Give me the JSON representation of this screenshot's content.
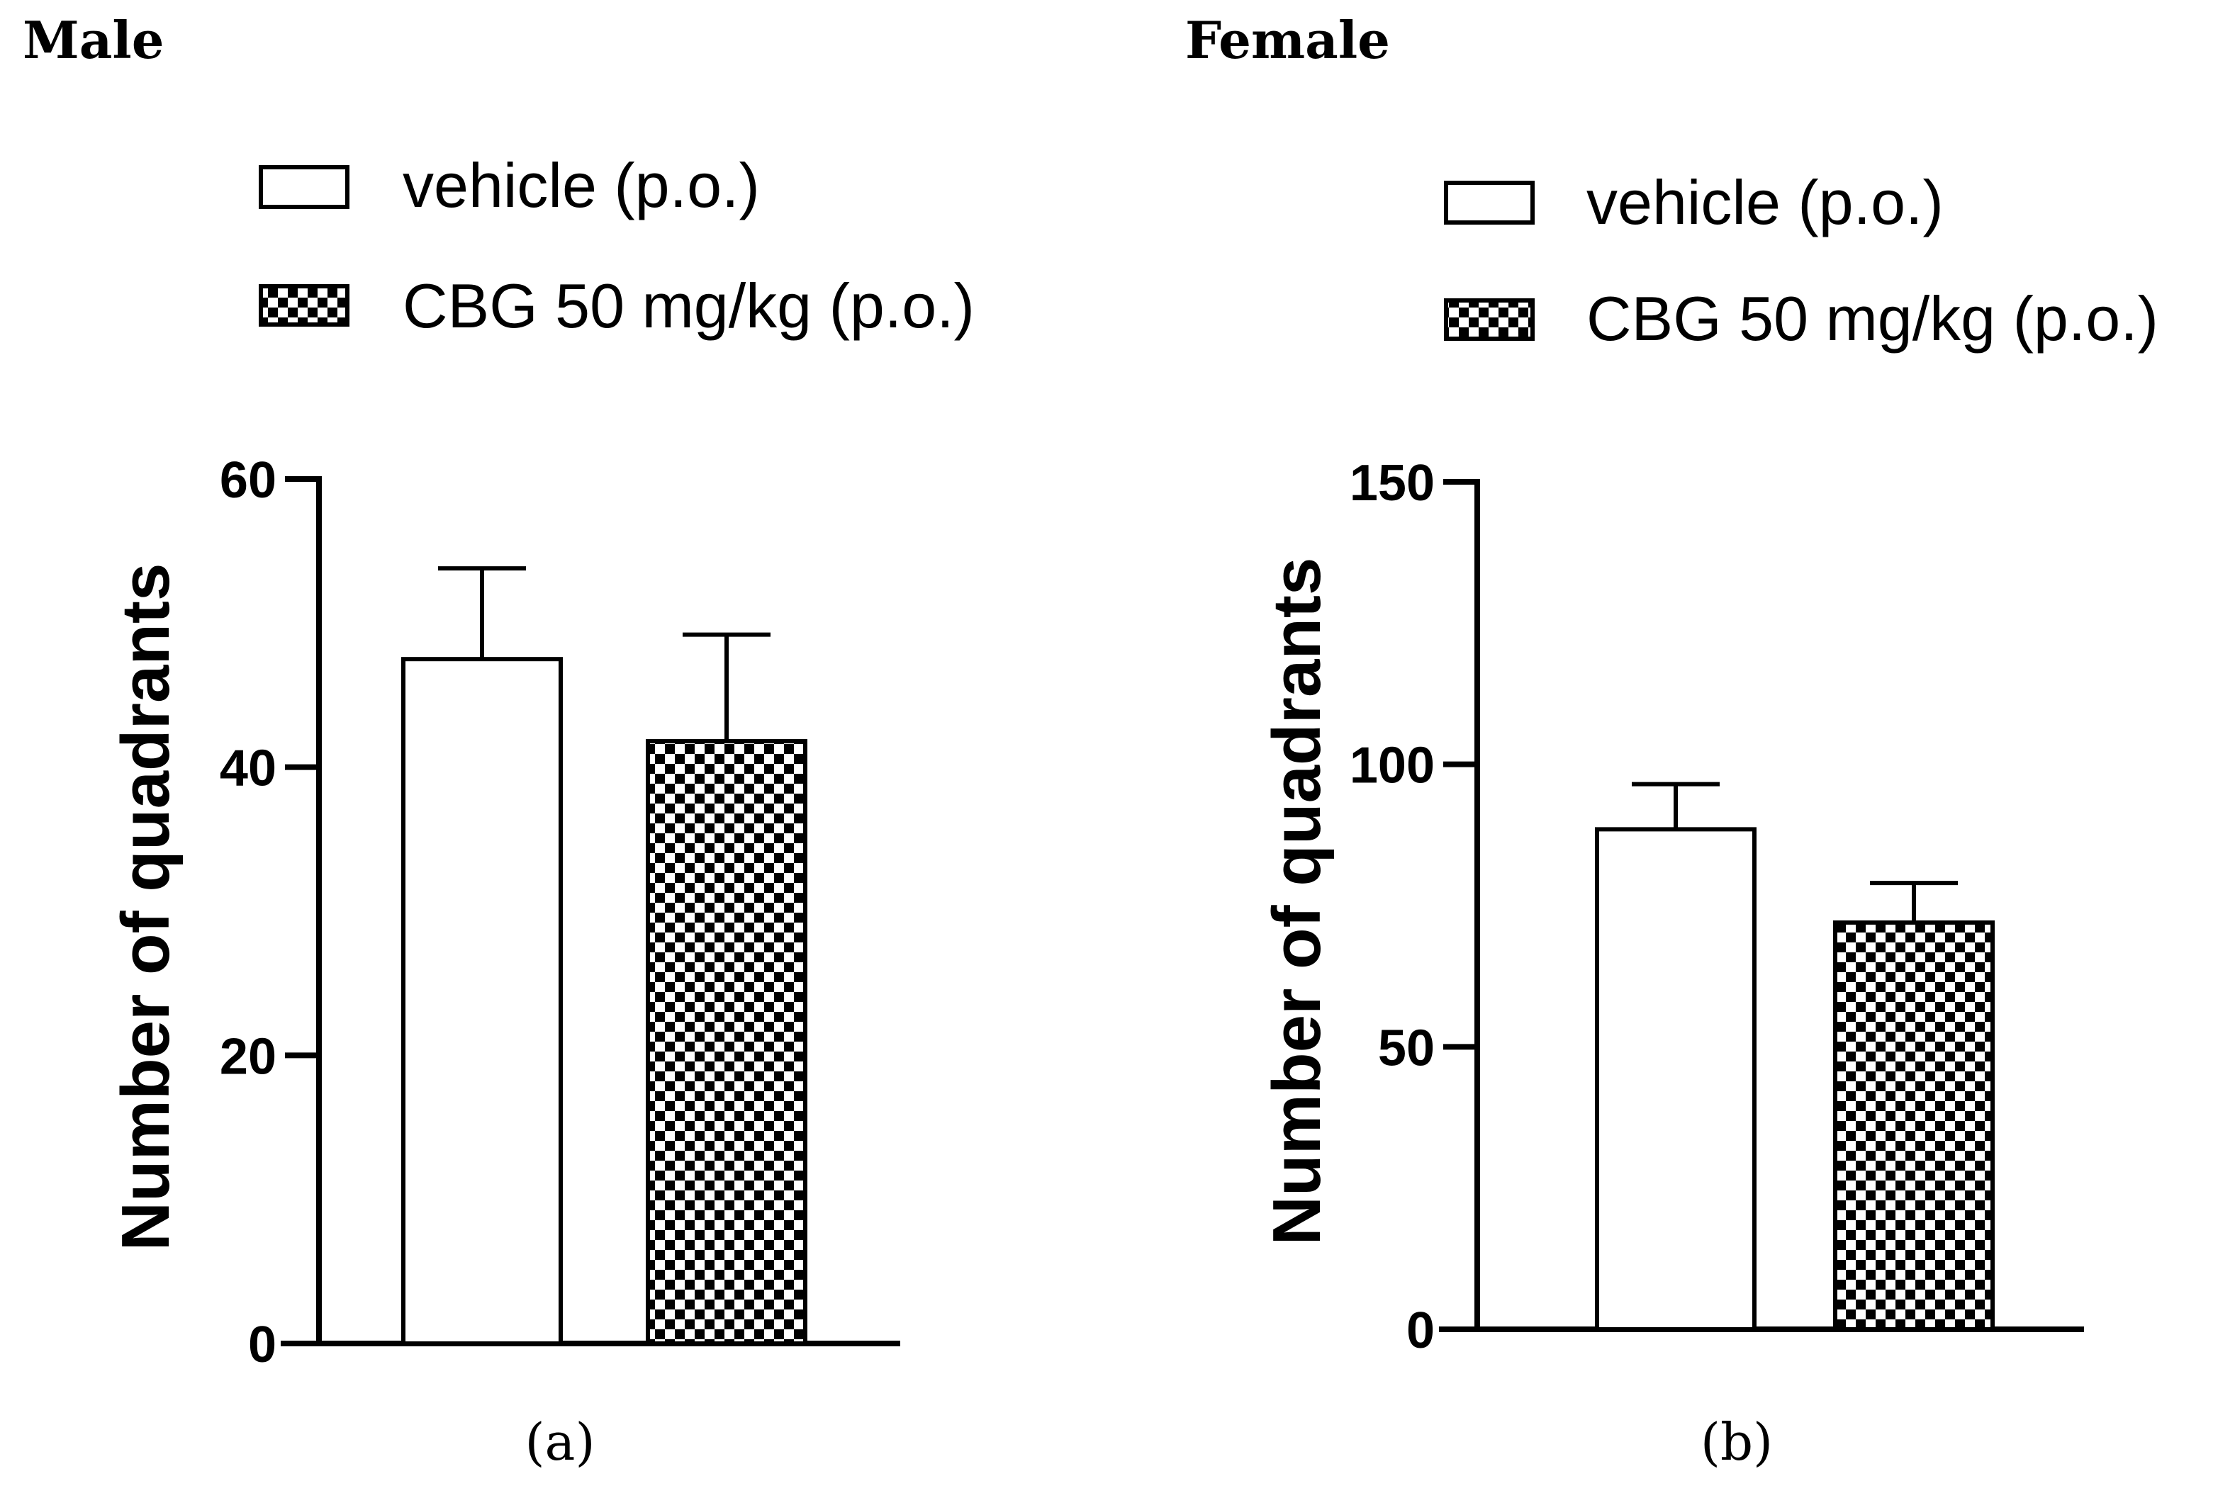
{
  "colors": {
    "ink": "#000000",
    "paper": "#ffffff"
  },
  "chart_data": [
    {
      "type": "bar",
      "panel_title": "Male",
      "caption": "(a)",
      "categories": [
        "vehicle (p.o.)",
        "CBG 50 mg/kg (p.o.)"
      ],
      "patterns": [
        "solid-white",
        "checkerboard"
      ],
      "values": [
        47.5,
        41.8
      ],
      "errors": [
        6.3,
        7.4
      ],
      "ylabel": "Number of quadrants",
      "xlabel": "",
      "ylim": [
        0,
        60
      ],
      "yticks": [
        0,
        20,
        40,
        60
      ],
      "legend_position": "top",
      "grid": false
    },
    {
      "type": "bar",
      "panel_title": "Female",
      "caption": "(b)",
      "categories": [
        "vehicle (p.o.)",
        "CBG 50 mg/kg (p.o.)"
      ],
      "patterns": [
        "solid-white",
        "checkerboard"
      ],
      "values": [
        88.5,
        72.0
      ],
      "errors": [
        8.0,
        7.0
      ],
      "ylabel": "Number of quadrants",
      "xlabel": "",
      "ylim": [
        0,
        150
      ],
      "yticks": [
        0,
        50,
        100,
        150
      ],
      "legend_position": "top",
      "grid": false
    }
  ]
}
